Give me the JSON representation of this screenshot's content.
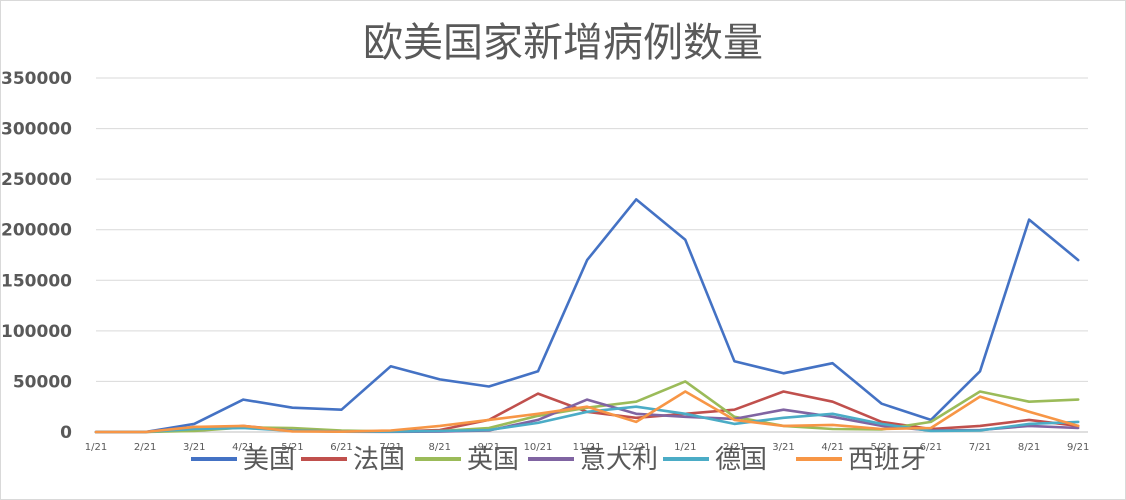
{
  "chart_data": {
    "type": "line",
    "title": "欧美国家新增病例数量",
    "xlabel": "",
    "ylabel": "",
    "ylim": [
      0,
      350000
    ],
    "yticks": [
      0,
      50000,
      100000,
      150000,
      200000,
      250000,
      300000,
      350000
    ],
    "xticks": [
      "1/21",
      "2/21",
      "3/21",
      "4/21",
      "5/21",
      "6/21",
      "7/21",
      "8/21",
      "9/21",
      "10/21",
      "11/21",
      "12/21",
      "1/21",
      "2/21",
      "3/21",
      "4/21",
      "5/21",
      "6/21",
      "7/21",
      "8/21",
      "9/21"
    ],
    "x": [
      "1/21",
      "2/21",
      "3/21",
      "4/21",
      "5/21",
      "6/21",
      "7/21",
      "8/21",
      "9/21",
      "10/21",
      "11/21",
      "12/21",
      "1/21",
      "2/21",
      "3/21",
      "4/21",
      "5/21",
      "6/21",
      "7/21",
      "8/21",
      "9/21"
    ],
    "grid": true,
    "legend": "bottom",
    "series": [
      {
        "name": "美国",
        "color": "#4472c4",
        "values": [
          0,
          0,
          8000,
          32000,
          24000,
          22000,
          65000,
          52000,
          45000,
          60000,
          170000,
          230000,
          190000,
          70000,
          58000,
          68000,
          28000,
          12000,
          60000,
          210000,
          170000
        ]
      },
      {
        "name": "法国",
        "color": "#c0504d",
        "values": [
          0,
          0,
          2000,
          6000,
          1500,
          500,
          500,
          2000,
          12000,
          38000,
          20000,
          14000,
          18000,
          22000,
          40000,
          30000,
          10000,
          3000,
          6000,
          12000,
          6000
        ]
      },
      {
        "name": "英国",
        "color": "#9bbb59",
        "values": [
          0,
          0,
          1000,
          4500,
          4000,
          1500,
          600,
          1000,
          4000,
          16000,
          24000,
          30000,
          50000,
          15000,
          6000,
          3000,
          2500,
          10000,
          40000,
          30000,
          32000
        ]
      },
      {
        "name": "意大利",
        "color": "#8064a2",
        "values": [
          0,
          0,
          5000,
          4500,
          1500,
          300,
          200,
          400,
          1500,
          12000,
          32000,
          18000,
          15000,
          13000,
          22000,
          15000,
          6000,
          1500,
          2000,
          6000,
          4000
        ]
      },
      {
        "name": "德国",
        "color": "#4bacc6",
        "values": [
          0,
          0,
          3000,
          4000,
          1200,
          400,
          400,
          1000,
          2000,
          9000,
          20000,
          25000,
          18000,
          8000,
          14000,
          18000,
          8000,
          1000,
          1500,
          8000,
          10000
        ]
      },
      {
        "name": "西班牙",
        "color": "#f79646",
        "values": [
          0,
          0,
          5000,
          6000,
          600,
          300,
          1500,
          6000,
          12000,
          18000,
          25000,
          10000,
          40000,
          12000,
          6000,
          7000,
          3000,
          4000,
          35000,
          20000,
          6000
        ]
      }
    ]
  }
}
